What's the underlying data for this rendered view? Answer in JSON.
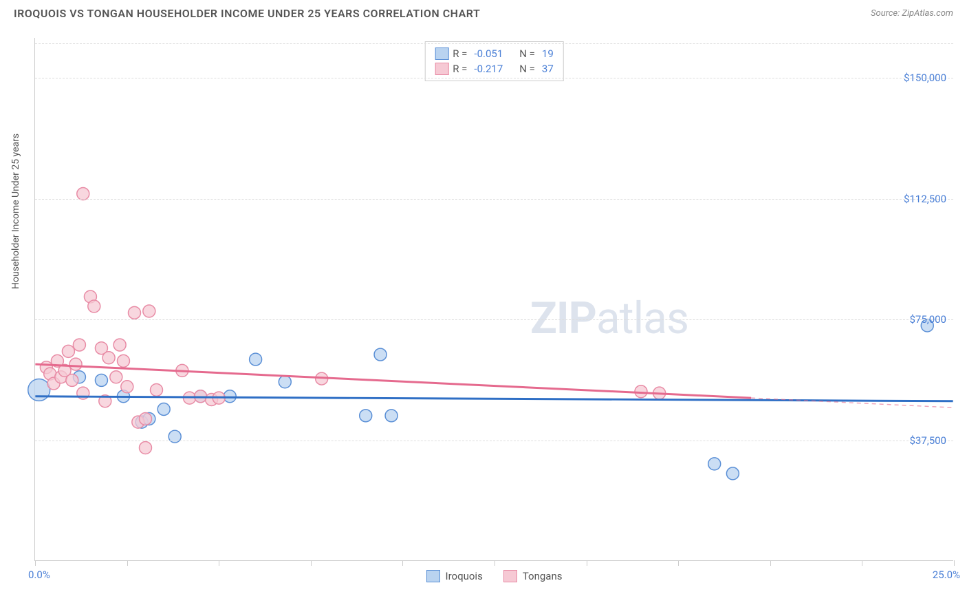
{
  "title": "IROQUOIS VS TONGAN HOUSEHOLDER INCOME UNDER 25 YEARS CORRELATION CHART",
  "source": "Source: ZipAtlas.com",
  "y_axis_label": "Householder Income Under 25 years",
  "chart": {
    "type": "scatter",
    "xlim": [
      0,
      25
    ],
    "ylim": [
      0,
      162500
    ],
    "x_min_label": "0.0%",
    "x_max_label": "25.0%",
    "y_ticks": [
      {
        "v": 37500,
        "label": "$37,500"
      },
      {
        "v": 75000,
        "label": "$75,000"
      },
      {
        "v": 112500,
        "label": "$112,500"
      },
      {
        "v": 150000,
        "label": "$150,000"
      }
    ],
    "x_tick_positions": [
      0,
      2.5,
      5,
      7.5,
      10,
      12.5,
      15,
      17.5,
      20,
      22.5,
      25
    ],
    "background_color": "#ffffff",
    "grid_color": "#dddddd",
    "series": [
      {
        "name": "Iroquois",
        "fill": "#b9d3f0",
        "stroke": "#5a8fd6",
        "marker_radius": 9,
        "line_color": "#2f6fc5",
        "line_width": 3,
        "R": "-0.051",
        "N": "19",
        "trend": {
          "x1": 0,
          "y1": 51000,
          "x2": 25,
          "y2": 49500
        },
        "points": [
          {
            "x": 0.1,
            "y": 53000,
            "r": 16
          },
          {
            "x": 1.2,
            "y": 57000
          },
          {
            "x": 1.8,
            "y": 56000
          },
          {
            "x": 2.4,
            "y": 51000
          },
          {
            "x": 2.9,
            "y": 43000
          },
          {
            "x": 3.1,
            "y": 44000
          },
          {
            "x": 3.5,
            "y": 47000
          },
          {
            "x": 3.8,
            "y": 38500
          },
          {
            "x": 4.5,
            "y": 51000
          },
          {
            "x": 5.3,
            "y": 51000
          },
          {
            "x": 6.0,
            "y": 62500
          },
          {
            "x": 6.8,
            "y": 55500
          },
          {
            "x": 9.0,
            "y": 45000
          },
          {
            "x": 9.4,
            "y": 64000
          },
          {
            "x": 9.7,
            "y": 45000
          },
          {
            "x": 18.5,
            "y": 30000
          },
          {
            "x": 19.0,
            "y": 27000
          },
          {
            "x": 24.3,
            "y": 73000
          }
        ]
      },
      {
        "name": "Tongans",
        "fill": "#f6c9d4",
        "stroke": "#e88ba5",
        "marker_radius": 9,
        "line_color": "#e56a8e",
        "line_width": 3,
        "R": "-0.217",
        "N": "37",
        "trend": {
          "x1": 0,
          "y1": 61000,
          "x2": 19.5,
          "y2": 50500
        },
        "trend_dash": {
          "x1": 19.5,
          "y1": 50500,
          "x2": 25,
          "y2": 47500
        },
        "points": [
          {
            "x": 0.3,
            "y": 60000
          },
          {
            "x": 0.4,
            "y": 58000
          },
          {
            "x": 0.5,
            "y": 55000
          },
          {
            "x": 0.6,
            "y": 62000
          },
          {
            "x": 0.7,
            "y": 57000
          },
          {
            "x": 0.8,
            "y": 59000
          },
          {
            "x": 0.9,
            "y": 65000
          },
          {
            "x": 1.0,
            "y": 56000
          },
          {
            "x": 1.1,
            "y": 61000
          },
          {
            "x": 1.2,
            "y": 67000
          },
          {
            "x": 1.3,
            "y": 52000
          },
          {
            "x": 1.3,
            "y": 114000
          },
          {
            "x": 1.5,
            "y": 82000
          },
          {
            "x": 1.6,
            "y": 79000
          },
          {
            "x": 1.8,
            "y": 66000
          },
          {
            "x": 1.9,
            "y": 49500
          },
          {
            "x": 2.0,
            "y": 63000
          },
          {
            "x": 2.2,
            "y": 57000
          },
          {
            "x": 2.3,
            "y": 67000
          },
          {
            "x": 2.4,
            "y": 62000
          },
          {
            "x": 2.5,
            "y": 54000
          },
          {
            "x": 2.7,
            "y": 77000
          },
          {
            "x": 2.8,
            "y": 43000
          },
          {
            "x": 3.0,
            "y": 44000
          },
          {
            "x": 3.1,
            "y": 77500
          },
          {
            "x": 3.0,
            "y": 35000
          },
          {
            "x": 3.3,
            "y": 53000
          },
          {
            "x": 4.0,
            "y": 59000
          },
          {
            "x": 4.2,
            "y": 50500
          },
          {
            "x": 4.5,
            "y": 51000
          },
          {
            "x": 4.8,
            "y": 50000
          },
          {
            "x": 5.0,
            "y": 50500
          },
          {
            "x": 7.8,
            "y": 56500
          },
          {
            "x": 16.5,
            "y": 52500
          },
          {
            "x": 17.0,
            "y": 52000
          }
        ]
      }
    ]
  },
  "legend_top": {
    "rows": [
      {
        "swatch_fill": "#b9d3f0",
        "swatch_stroke": "#5a8fd6",
        "r_label": "R =",
        "r_val": "-0.051",
        "n_label": "N =",
        "n_val": "19"
      },
      {
        "swatch_fill": "#f6c9d4",
        "swatch_stroke": "#e88ba5",
        "r_label": "R =",
        "r_val": "-0.217",
        "n_label": "N =",
        "n_val": "37"
      }
    ]
  },
  "legend_bottom": {
    "items": [
      {
        "swatch_fill": "#b9d3f0",
        "swatch_stroke": "#5a8fd6",
        "label": "Iroquois"
      },
      {
        "swatch_fill": "#f6c9d4",
        "swatch_stroke": "#e88ba5",
        "label": "Tongans"
      }
    ]
  },
  "watermark": {
    "bold": "ZIP",
    "rest": "atlas"
  }
}
